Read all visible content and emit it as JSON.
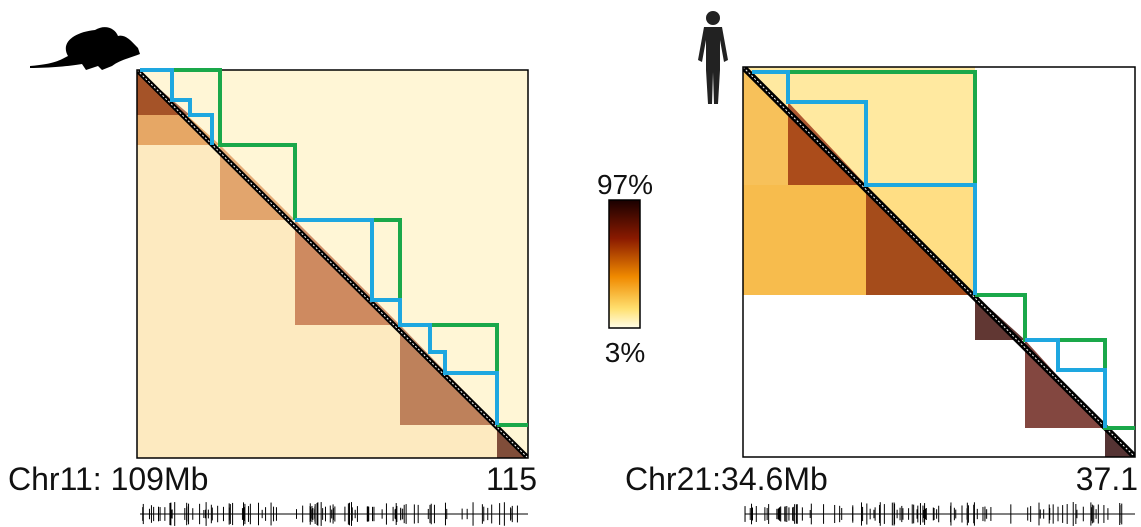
{
  "panels": [
    {
      "chromosome_label": "Chr11: 109Mb",
      "end_label": "115"
    },
    {
      "chromosome_label": "Chr21:34.6Mb",
      "end_label": "37.1"
    }
  ],
  "colorbar": {
    "max_label": "97%",
    "min_label": "3%"
  }
}
